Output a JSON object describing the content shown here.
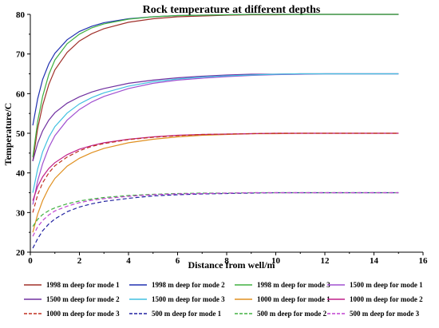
{
  "chart_data": {
    "type": "line",
    "title": "Rock temperature at different depths",
    "xlabel": "Distance from well/m",
    "ylabel": "Temperature/C",
    "xlim": [
      0,
      16
    ],
    "ylim": [
      20,
      80
    ],
    "xticks": [
      0,
      2,
      4,
      6,
      8,
      10,
      12,
      14,
      16
    ],
    "yticks": [
      20,
      30,
      40,
      50,
      60,
      70,
      80
    ],
    "grid": false,
    "legend_position": "bottom",
    "x": [
      0.1,
      0.3,
      0.5,
      0.75,
      1,
      1.5,
      2,
      2.5,
      3,
      4,
      5,
      6,
      7,
      8,
      9,
      10,
      11,
      12,
      13,
      14,
      15
    ],
    "series": [
      {
        "name": "1998 m deep for mode 1",
        "color": "#a0302a",
        "dash": "solid",
        "values": [
          43.0,
          51.2,
          57.0,
          62.3,
          66.0,
          70.4,
          73.3,
          75.1,
          76.4,
          78.0,
          78.9,
          79.4,
          79.6,
          79.8,
          79.9,
          79.9,
          80.0,
          80.0,
          80.0,
          80.0,
          80.0
        ]
      },
      {
        "name": "1998 m deep for mode 2",
        "color": "#2030b0",
        "dash": "solid",
        "values": [
          52.0,
          58.7,
          63.6,
          67.5,
          70.2,
          73.6,
          75.7,
          77.0,
          77.9,
          78.9,
          79.4,
          79.7,
          79.8,
          79.9,
          80.0,
          80.0,
          80.0,
          80.0,
          80.0,
          80.0,
          80.0
        ]
      },
      {
        "name": "1998 m deep for mode 3",
        "color": "#40b040",
        "dash": "solid",
        "values": [
          44.0,
          53.0,
          59.3,
          64.8,
          68.5,
          72.6,
          75.0,
          76.6,
          77.6,
          78.8,
          79.4,
          79.7,
          79.8,
          79.9,
          80.0,
          80.0,
          80.0,
          80.0,
          80.0,
          80.0,
          80.0
        ]
      },
      {
        "name": "1500 m deep for mode 1",
        "color": "#a050d0",
        "dash": "solid",
        "values": [
          32.0,
          38.0,
          42.3,
          46.4,
          49.4,
          53.3,
          56.0,
          57.9,
          59.3,
          61.3,
          62.6,
          63.4,
          63.9,
          64.3,
          64.6,
          64.8,
          64.9,
          65.0,
          65.0,
          65.0,
          65.0
        ]
      },
      {
        "name": "1500 m deep for mode 2",
        "color": "#7030a0",
        "dash": "solid",
        "values": [
          43.0,
          47.5,
          50.6,
          53.3,
          55.2,
          57.6,
          59.2,
          60.4,
          61.3,
          62.6,
          63.4,
          64.0,
          64.4,
          64.7,
          64.9,
          64.9,
          65.0,
          65.0,
          65.0,
          65.0,
          65.0
        ]
      },
      {
        "name": "1500 m deep for mode 3",
        "color": "#40c0e0",
        "dash": "solid",
        "values": [
          35.0,
          41.0,
          45.3,
          49.0,
          51.7,
          55.1,
          57.4,
          59.0,
          60.2,
          61.9,
          63.0,
          63.7,
          64.2,
          64.5,
          64.7,
          64.9,
          65.0,
          65.0,
          65.0,
          65.0,
          65.0
        ]
      },
      {
        "name": "1000 m deep for mode 1",
        "color": "#e09020",
        "dash": "solid",
        "values": [
          25.0,
          29.6,
          33.0,
          36.2,
          38.6,
          41.7,
          43.7,
          45.1,
          46.2,
          47.6,
          48.5,
          49.1,
          49.5,
          49.7,
          49.9,
          49.9,
          50.0,
          50.0,
          50.0,
          50.0,
          50.0
        ]
      },
      {
        "name": "1000 m deep for mode 2",
        "color": "#c0208a",
        "dash": "solid",
        "values": [
          33.0,
          36.6,
          39.0,
          41.1,
          42.6,
          44.6,
          46.0,
          46.9,
          47.6,
          48.5,
          49.1,
          49.5,
          49.7,
          49.8,
          49.9,
          50.0,
          50.0,
          50.0,
          50.0,
          50.0,
          50.0
        ]
      },
      {
        "name": "1000 m deep for mode 3",
        "color": "#c03020",
        "dash": "dashed",
        "values": [
          30.0,
          34.5,
          37.5,
          40.0,
          41.8,
          44.0,
          45.6,
          46.7,
          47.4,
          48.4,
          49.0,
          49.4,
          49.7,
          49.8,
          49.9,
          50.0,
          50.0,
          50.0,
          50.0,
          50.0,
          50.0
        ]
      },
      {
        "name": "500 m deep for mode 1",
        "color": "#2020a0",
        "dash": "dashed",
        "values": [
          21.0,
          23.4,
          25.4,
          27.1,
          28.4,
          30.2,
          31.4,
          32.2,
          32.8,
          33.6,
          34.2,
          34.5,
          34.7,
          34.8,
          34.9,
          35.0,
          35.0,
          35.0,
          35.0,
          35.0,
          35.0
        ]
      },
      {
        "name": "500 m deep for mode 2",
        "color": "#40b040",
        "dash": "dashed",
        "values": [
          26.5,
          28.3,
          29.5,
          30.5,
          31.2,
          32.2,
          32.9,
          33.4,
          33.8,
          34.3,
          34.6,
          34.8,
          34.9,
          34.9,
          35.0,
          35.0,
          35.0,
          35.0,
          35.0,
          35.0,
          35.0
        ]
      },
      {
        "name": "500 m deep for mode 3",
        "color": "#c040d0",
        "dash": "dashed",
        "values": [
          24.0,
          26.4,
          28.0,
          29.4,
          30.4,
          31.6,
          32.5,
          33.1,
          33.5,
          34.1,
          34.5,
          34.7,
          34.8,
          34.9,
          35.0,
          35.0,
          35.0,
          35.0,
          35.0,
          35.0,
          35.0
        ]
      }
    ]
  }
}
